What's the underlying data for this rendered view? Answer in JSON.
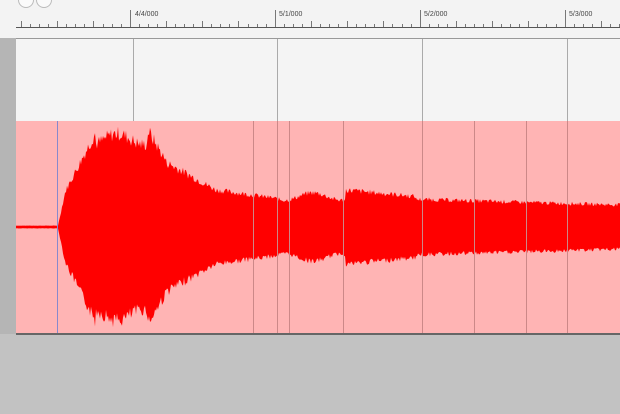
{
  "ruler": {
    "markers": [
      "4/4/000",
      "5/1/000",
      "5/2/000",
      "5/3/000"
    ]
  },
  "colors": {
    "waveform": "#ff0000",
    "region_background": "#ffb4b4",
    "playhead": "#8888cc"
  }
}
